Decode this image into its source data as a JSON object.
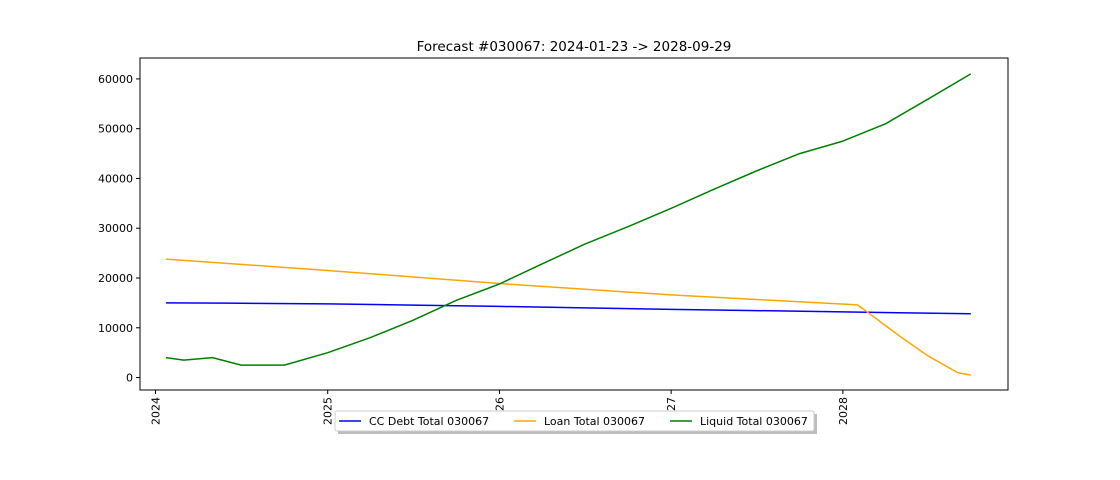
{
  "chart_data": {
    "type": "line",
    "title": "Forecast #030067: 2024-01-23 -> 2028-09-29",
    "xlabel": "",
    "ylabel": "",
    "x_type": "date",
    "xlim": [
      "2023-11-29",
      "2028-12-17"
    ],
    "ylim": [
      -2500,
      64200
    ],
    "x_ticks": [
      "2024-01-01",
      "2025-01-01",
      "2026-01-01",
      "2027-01-01",
      "2028-01-01"
    ],
    "x_tick_labels": [
      "2024",
      "2025",
      "2026",
      "2027",
      "2028"
    ],
    "y_ticks": [
      0,
      10000,
      20000,
      30000,
      40000,
      50000,
      60000
    ],
    "y_tick_labels": [
      "0",
      "10000",
      "20000",
      "30000",
      "40000",
      "50000",
      "60000"
    ],
    "grid": false,
    "legend_position": "bottom-center",
    "series": [
      {
        "name": "CC Debt Total 030067",
        "color": "#0000ff",
        "x": [
          "2024-01-23",
          "2024-06-01",
          "2025-01-01",
          "2025-07-01",
          "2026-01-01",
          "2026-07-01",
          "2027-01-01",
          "2027-07-01",
          "2028-01-01",
          "2028-09-29"
        ],
        "values": [
          15000,
          14950,
          14800,
          14550,
          14300,
          14000,
          13700,
          13450,
          13200,
          12800
        ]
      },
      {
        "name": "Loan Total 030067",
        "color": "#ffa500",
        "x": [
          "2024-01-23",
          "2025-01-01",
          "2026-01-01",
          "2027-01-01",
          "2028-02-01",
          "2028-03-01",
          "2028-05-01",
          "2028-07-01",
          "2028-09-01",
          "2028-09-29"
        ],
        "values": [
          23800,
          21500,
          18900,
          16600,
          14600,
          12600,
          8300,
          4300,
          1000,
          500
        ]
      },
      {
        "name": "Liquid Total 030067",
        "color": "#008000",
        "x": [
          "2024-01-23",
          "2024-03-01",
          "2024-05-01",
          "2024-07-01",
          "2024-10-01",
          "2025-01-01",
          "2025-04-01",
          "2025-07-01",
          "2025-10-01",
          "2026-01-01",
          "2026-04-01",
          "2026-07-01",
          "2026-10-01",
          "2027-01-01",
          "2027-04-01",
          "2027-07-01",
          "2027-10-01",
          "2028-01-01",
          "2028-04-01",
          "2028-07-01",
          "2028-09-29"
        ],
        "values": [
          4000,
          3500,
          4000,
          2500,
          2500,
          5000,
          8000,
          11500,
          15500,
          18800,
          22800,
          26800,
          30300,
          34000,
          37800,
          41500,
          45000,
          47500,
          51000,
          56000,
          61000
        ]
      }
    ]
  }
}
